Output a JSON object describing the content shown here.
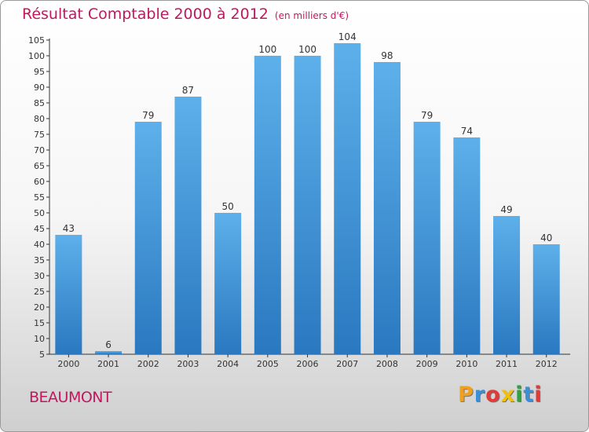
{
  "chart_data": {
    "type": "bar",
    "title": "Résultat Comptable 2000 à 2012",
    "subtitle": "(en milliers d'€)",
    "categories": [
      "2000",
      "2001",
      "2002",
      "2003",
      "2004",
      "2005",
      "2006",
      "2007",
      "2008",
      "2009",
      "2010",
      "2011",
      "2012"
    ],
    "values": [
      43,
      6,
      79,
      87,
      50,
      100,
      100,
      104,
      98,
      79,
      74,
      49,
      40
    ],
    "yticks": [
      5,
      10,
      15,
      20,
      25,
      30,
      35,
      40,
      45,
      50,
      55,
      60,
      65,
      70,
      75,
      80,
      85,
      90,
      95,
      100,
      105
    ],
    "ylim": [
      5,
      105
    ],
    "xlabel": "",
    "ylabel": "",
    "grid": false
  },
  "commune": "BEAUMONT",
  "brand": {
    "letters": [
      "P",
      "r",
      "o",
      "x",
      "i",
      "t",
      "i"
    ],
    "colors": [
      "#f0a020",
      "#3a8fd8",
      "#e03b3b",
      "#f0c010",
      "#30a040",
      "#3a8fd8",
      "#e03b3b"
    ]
  },
  "colors": {
    "title": "#c0185e",
    "bar_top": "#5db0ea",
    "bar_bottom": "#2a78c0",
    "axis": "#333333"
  }
}
